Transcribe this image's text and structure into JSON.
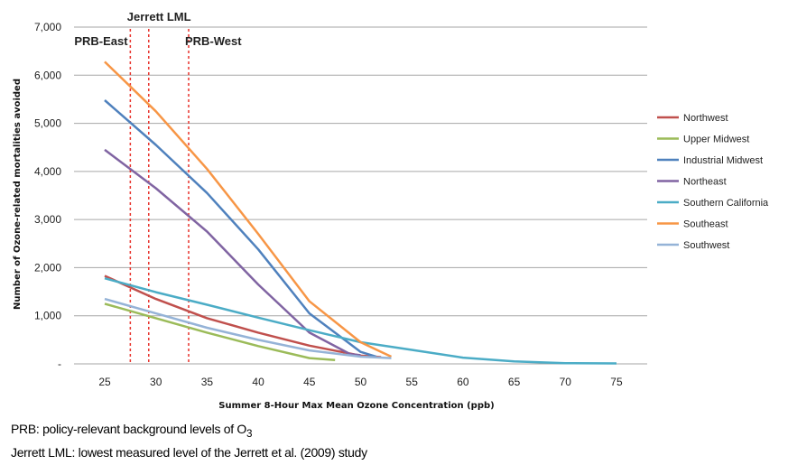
{
  "chart_data": {
    "type": "line",
    "xlabel": "Summer 8-Hour Max Mean Ozone Concentration (ppb)",
    "ylabel": "Number of Ozone-related mortalities avoided",
    "xlim": [
      22,
      78
    ],
    "ylim": [
      0,
      7000
    ],
    "x_ticks": [
      25,
      30,
      35,
      40,
      45,
      50,
      55,
      60,
      65,
      70,
      75
    ],
    "y_ticks": [
      0,
      1000,
      2000,
      3000,
      4000,
      5000,
      6000,
      7000
    ],
    "y_tick_labels": [
      "-",
      "1,000",
      "2,000",
      "3,000",
      "4,000",
      "5,000",
      "6,000",
      "7,000"
    ],
    "grid": "horizontal",
    "legend_position": "right",
    "reference_lines": [
      {
        "label": "PRB-East",
        "x": 27.5
      },
      {
        "label": "Jerrett LML",
        "x": 29.3
      },
      {
        "label": "PRB-West",
        "x": 33.2
      }
    ],
    "series": [
      {
        "name": "Northwest",
        "color": "#c0504d",
        "points": [
          [
            25,
            1830
          ],
          [
            30,
            1350
          ],
          [
            35,
            950
          ],
          [
            40,
            650
          ],
          [
            45,
            380
          ],
          [
            50,
            170
          ],
          [
            52,
            140
          ]
        ]
      },
      {
        "name": "Upper Midwest",
        "color": "#9bbb59",
        "points": [
          [
            25,
            1250
          ],
          [
            30,
            950
          ],
          [
            35,
            650
          ],
          [
            40,
            370
          ],
          [
            45,
            120
          ],
          [
            47.5,
            80
          ]
        ]
      },
      {
        "name": "Industrial Midwest",
        "color": "#4f81bd",
        "points": [
          [
            25,
            5480
          ],
          [
            30,
            4550
          ],
          [
            35,
            3550
          ],
          [
            40,
            2380
          ],
          [
            45,
            1050
          ],
          [
            50,
            250
          ],
          [
            51.5,
            150
          ]
        ]
      },
      {
        "name": "Northeast",
        "color": "#8064a2",
        "points": [
          [
            25,
            4450
          ],
          [
            30,
            3650
          ],
          [
            35,
            2750
          ],
          [
            40,
            1650
          ],
          [
            45,
            650
          ],
          [
            49,
            200
          ],
          [
            50,
            180
          ]
        ]
      },
      {
        "name": "Southern California",
        "color": "#4bacc6",
        "points": [
          [
            25,
            1780
          ],
          [
            30,
            1490
          ],
          [
            35,
            1230
          ],
          [
            40,
            960
          ],
          [
            45,
            700
          ],
          [
            50,
            450
          ],
          [
            55,
            290
          ],
          [
            60,
            130
          ],
          [
            65,
            50
          ],
          [
            70,
            15
          ],
          [
            75,
            10
          ]
        ]
      },
      {
        "name": "Southeast",
        "color": "#f79646",
        "points": [
          [
            25,
            6280
          ],
          [
            30,
            5250
          ],
          [
            35,
            4050
          ],
          [
            40,
            2700
          ],
          [
            45,
            1300
          ],
          [
            50,
            450
          ],
          [
            52,
            250
          ],
          [
            53,
            150
          ]
        ]
      },
      {
        "name": "Southwest",
        "color": "#95b3d7",
        "points": [
          [
            25,
            1350
          ],
          [
            30,
            1050
          ],
          [
            35,
            750
          ],
          [
            40,
            500
          ],
          [
            45,
            280
          ],
          [
            50,
            150
          ],
          [
            53,
            120
          ]
        ]
      }
    ]
  },
  "notes": {
    "line1_text": "PRB: policy-relevant background levels of O",
    "line1_sub": "3",
    "line2_text": "Jerrett LML: lowest measured level of the Jerrett et al. (2009) study"
  }
}
